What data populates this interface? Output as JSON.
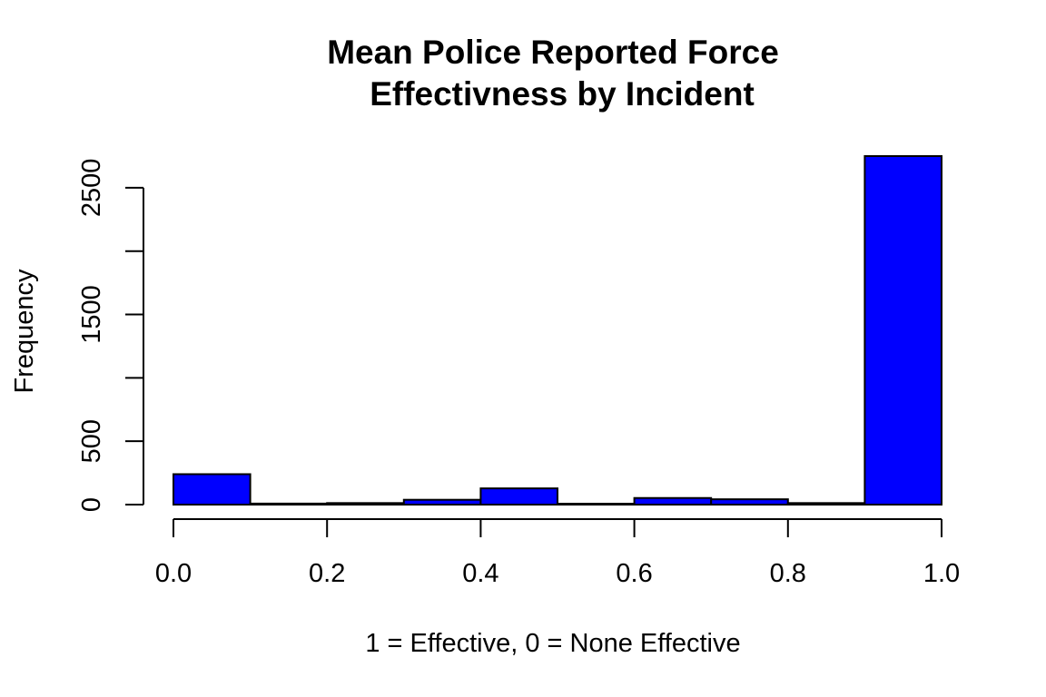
{
  "chart_data": {
    "type": "bar",
    "title_lines": [
      "Mean Police Reported Force",
      "Effectivness by Incident"
    ],
    "xlabel": "1 = Effective, 0 = None Effective",
    "ylabel": "Frequency",
    "bins": [
      {
        "start": 0.0,
        "end": 0.1,
        "count": 240
      },
      {
        "start": 0.1,
        "end": 0.2,
        "count": 8
      },
      {
        "start": 0.2,
        "end": 0.3,
        "count": 12
      },
      {
        "start": 0.3,
        "end": 0.4,
        "count": 38
      },
      {
        "start": 0.4,
        "end": 0.5,
        "count": 128
      },
      {
        "start": 0.5,
        "end": 0.6,
        "count": 7
      },
      {
        "start": 0.6,
        "end": 0.7,
        "count": 52
      },
      {
        "start": 0.7,
        "end": 0.8,
        "count": 42
      },
      {
        "start": 0.8,
        "end": 0.9,
        "count": 12
      },
      {
        "start": 0.9,
        "end": 1.0,
        "count": 2750
      }
    ],
    "xlim": [
      0.0,
      1.0
    ],
    "ylim": [
      0,
      2750
    ],
    "x_ticks": [
      0.0,
      0.2,
      0.4,
      0.6,
      0.8,
      1.0
    ],
    "x_tick_labels": [
      "0.0",
      "0.2",
      "0.4",
      "0.6",
      "0.8",
      "1.0"
    ],
    "y_ticks": [
      0,
      500,
      1000,
      1500,
      2000,
      2500
    ],
    "y_tick_labels": [
      "0",
      "500",
      "",
      "1500",
      "",
      "2500"
    ],
    "bar_color": "#0000ff",
    "grid": false,
    "legend": "none"
  }
}
